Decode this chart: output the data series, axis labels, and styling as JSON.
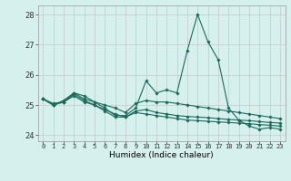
{
  "title": "",
  "xlabel": "Humidex (Indice chaleur)",
  "ylabel": "",
  "background_color": "#d6f0ee",
  "grid_color": "#c8c8c8",
  "line_color": "#1a6b5a",
  "xlim": [
    -0.5,
    23.5
  ],
  "ylim": [
    23.8,
    28.3
  ],
  "yticks": [
    24,
    25,
    26,
    27,
    28
  ],
  "xticks": [
    0,
    1,
    2,
    3,
    4,
    5,
    6,
    7,
    8,
    9,
    10,
    11,
    12,
    13,
    14,
    15,
    16,
    17,
    18,
    19,
    20,
    21,
    22,
    23
  ],
  "series": [
    [
      25.2,
      25.0,
      25.1,
      25.4,
      25.3,
      25.1,
      24.9,
      24.65,
      24.65,
      24.9,
      25.8,
      25.4,
      25.5,
      25.4,
      26.8,
      28.0,
      27.1,
      26.5,
      24.9,
      24.5,
      24.3,
      24.2,
      24.25,
      24.2
    ],
    [
      25.2,
      25.0,
      25.15,
      25.4,
      25.2,
      25.1,
      25.0,
      24.9,
      24.75,
      25.05,
      25.15,
      25.1,
      25.1,
      25.05,
      25.0,
      24.95,
      24.9,
      24.85,
      24.8,
      24.75,
      24.7,
      24.65,
      24.6,
      24.55
    ],
    [
      25.2,
      25.0,
      25.1,
      25.35,
      25.15,
      25.0,
      24.85,
      24.7,
      24.6,
      24.8,
      24.85,
      24.75,
      24.7,
      24.65,
      24.62,
      24.6,
      24.58,
      24.55,
      24.52,
      24.5,
      24.48,
      24.45,
      24.42,
      24.4
    ],
    [
      25.2,
      25.05,
      25.1,
      25.3,
      25.1,
      25.0,
      24.8,
      24.6,
      24.6,
      24.75,
      24.7,
      24.65,
      24.6,
      24.55,
      24.5,
      24.48,
      24.46,
      24.44,
      24.42,
      24.4,
      24.38,
      24.35,
      24.33,
      24.3
    ]
  ]
}
